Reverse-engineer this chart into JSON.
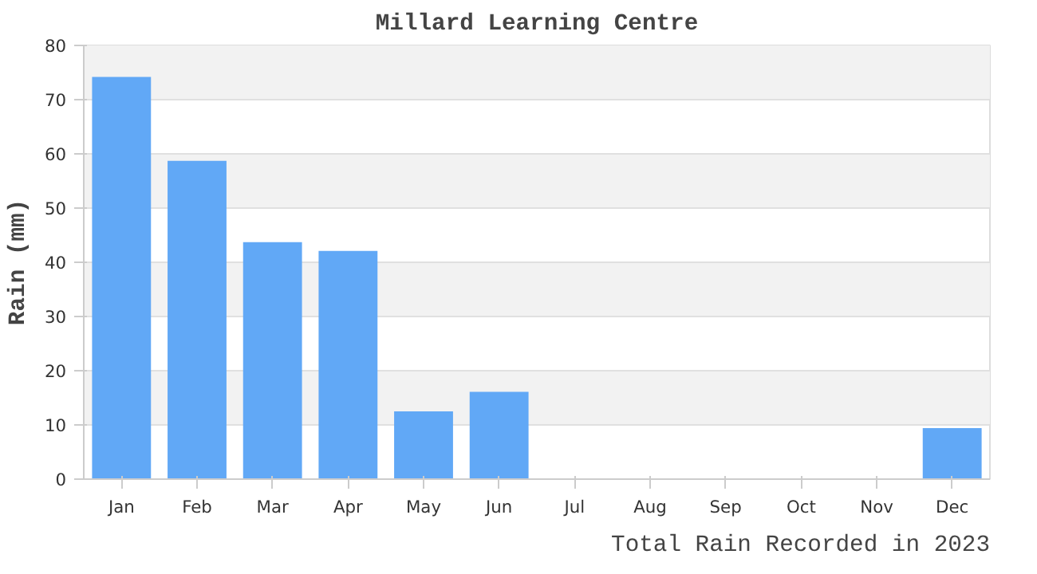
{
  "chart_data": {
    "type": "bar",
    "title": "Millard Learning Centre",
    "ylabel": "Rain (mm)",
    "categories": [
      "Jan",
      "Feb",
      "Mar",
      "Apr",
      "May",
      "Jun",
      "Jul",
      "Aug",
      "Sep",
      "Oct",
      "Nov",
      "Dec"
    ],
    "values": [
      74.2,
      58.7,
      43.7,
      42.1,
      12.5,
      16.1,
      0,
      0,
      0,
      0,
      0,
      9.4
    ],
    "color": "#61a8f6",
    "ylim": [
      0,
      80
    ],
    "yticks": [
      0,
      10,
      20,
      30,
      40,
      50,
      60,
      70,
      80
    ],
    "grid": "y",
    "annotations": [
      "Total Rain Recorded in 2023"
    ]
  }
}
